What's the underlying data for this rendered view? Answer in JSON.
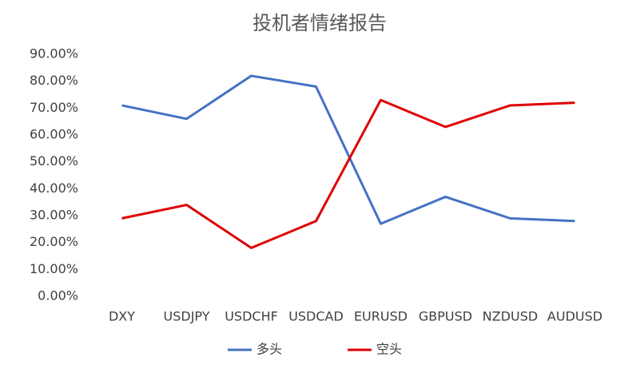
{
  "chart_data": {
    "type": "line",
    "title": "投机者情绪报告",
    "categories": [
      "DXY",
      "USDJPY",
      "USDCHF",
      "USDCAD",
      "EURUSD",
      "GBPUSD",
      "NZDUSD",
      "AUDUSD"
    ],
    "series": [
      {
        "name": "多头",
        "color": "#4472c4",
        "values": [
          71,
          66,
          82,
          78,
          27,
          37,
          29,
          28
        ]
      },
      {
        "name": "空头",
        "color": "#e00000",
        "values": [
          29,
          34,
          18,
          28,
          73,
          63,
          71,
          72
        ]
      }
    ],
    "ylim": [
      0,
      90
    ],
    "yticks": [
      {
        "value": 0,
        "label": "0.00%"
      },
      {
        "value": 10,
        "label": "10.00%"
      },
      {
        "value": 20,
        "label": "20.00%"
      },
      {
        "value": 30,
        "label": "30.00%"
      },
      {
        "value": 40,
        "label": "40.00%"
      },
      {
        "value": 50,
        "label": "50.00%"
      },
      {
        "value": 60,
        "label": "60.00%"
      },
      {
        "value": 70,
        "label": "70.00%"
      },
      {
        "value": 80,
        "label": "80.00%"
      },
      {
        "value": 90,
        "label": "90.00%"
      }
    ],
    "grid": false,
    "legend": "bottom"
  }
}
